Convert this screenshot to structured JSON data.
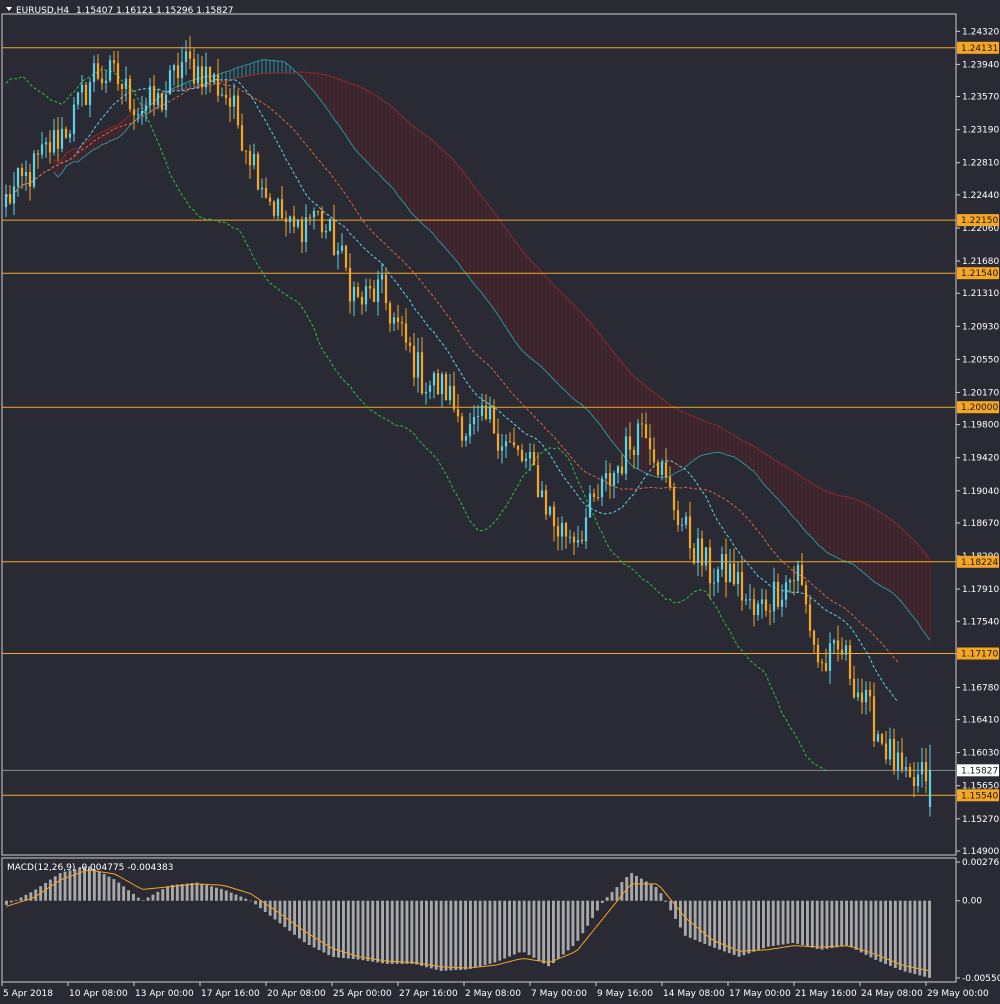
{
  "header": {
    "symbol": "EURUSD,H4",
    "ohlc": "1.15407 1.16121 1.15296 1.15827"
  },
  "macd_header": {
    "label": "MACD(12,26,9) -0.004775 -0.004383"
  },
  "colors": {
    "background": "#2a2a35",
    "bull": "#5fd3e6",
    "bear": "#f5a623",
    "level": "#f5a623",
    "cloud_bear": "#7a1a1a",
    "cloud_bull": "#2f8f99",
    "tenkan": "#5fd3e6",
    "kijun": "#e0663d",
    "chikou": "#2fbf3f",
    "macd_hist": "#a8a8a8",
    "macd_signal": "#f5a623",
    "current_price_box": "#ffffff"
  },
  "chart_data": {
    "type": "candlestick",
    "price_axis": {
      "min": 1.149,
      "max": 1.2445,
      "ticks": [
        "1.24320",
        "1.23940",
        "1.23570",
        "1.23190",
        "1.22810",
        "1.22440",
        "1.22060",
        "1.21680",
        "1.21310",
        "1.20930",
        "1.20550",
        "1.20170",
        "1.19800",
        "1.19420",
        "1.19040",
        "1.18670",
        "1.18290",
        "1.17910",
        "1.17540",
        "1.17160",
        "1.16780",
        "1.16410",
        "1.16030",
        "1.15650",
        "1.15270",
        "1.14900"
      ]
    },
    "levels": [
      {
        "label": "1.24131",
        "value": 1.24131
      },
      {
        "label": "1.22150",
        "value": 1.2215
      },
      {
        "label": "1.21540",
        "value": 1.2154
      },
      {
        "label": "1.20000",
        "value": 1.2
      },
      {
        "label": "1.18224",
        "value": 1.18224
      },
      {
        "label": "1.17170",
        "value": 1.1717
      },
      {
        "label": "1.15540",
        "value": 1.1554
      }
    ],
    "current_price": {
      "label": "1.15827",
      "value": 1.15827
    },
    "x_axis_labels": [
      "5 Apr 2018",
      "10 Apr 08:00",
      "13 Apr 00:00",
      "17 Apr 16:00",
      "20 Apr 08:00",
      "25 Apr 00:00",
      "27 Apr 16:00",
      "2 May 08:00",
      "7 May 00:00",
      "9 May 16:00",
      "14 May 08:00",
      "17 May 00:00",
      "21 May 16:00",
      "24 May 08:00",
      "29 May 00:00"
    ],
    "close_path": [
      1.2238,
      1.2265,
      1.23,
      1.233,
      1.2385,
      1.2378,
      1.2345,
      1.235,
      1.2395,
      1.2385,
      1.236,
      1.23,
      1.224,
      1.22,
      1.2225,
      1.2185,
      1.212,
      1.2135,
      1.208,
      1.203,
      1.202,
      1.197,
      1.1985,
      1.195,
      1.1925,
      1.186,
      1.1855,
      1.19,
      1.194,
      1.199,
      1.191,
      1.185,
      1.181,
      1.181,
      1.176,
      1.179,
      1.181,
      1.17,
      1.172,
      1.166,
      1.161,
      1.156,
      1.15827
    ],
    "macd": {
      "label": "MACD(12,26,9)",
      "main": -0.004775,
      "signal": -0.004383,
      "axis_ticks": [
        "0.00276",
        "0.00",
        "-0.005505"
      ],
      "axis_min": -0.005505,
      "axis_max": 0.00276,
      "hist_path": [
        -0.0003,
        0.0007,
        0.002,
        0.0025,
        0.0015,
        0.0,
        0.0011,
        0.0013,
        0.0008,
        0.0,
        -0.0015,
        -0.003,
        -0.004,
        -0.0042,
        -0.0045,
        -0.0045,
        -0.005,
        -0.0049,
        -0.0044,
        -0.0036,
        -0.0047,
        -0.003,
        0.0,
        0.002,
        0.0009,
        -0.0025,
        -0.0033,
        -0.004,
        -0.0033,
        -0.003,
        -0.0035,
        -0.0032,
        -0.0042,
        -0.005,
        -0.0055
      ],
      "signal_path": [
        -0.0004,
        0.0002,
        0.0015,
        0.0022,
        0.0019,
        0.0008,
        0.001,
        0.0012,
        0.0011,
        0.0005,
        -0.0008,
        -0.0022,
        -0.0034,
        -0.004,
        -0.0043,
        -0.0044,
        -0.0047,
        -0.0048,
        -0.0046,
        -0.0041,
        -0.0044,
        -0.0036,
        -0.0012,
        0.0012,
        0.0012,
        -0.0012,
        -0.0028,
        -0.0036,
        -0.0035,
        -0.0032,
        -0.0033,
        -0.0032,
        -0.0038,
        -0.0046,
        -0.005
      ]
    }
  }
}
